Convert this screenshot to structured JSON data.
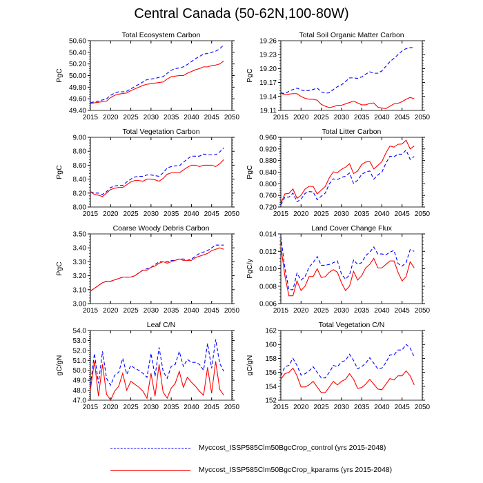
{
  "figure": {
    "title": "Central Canada (50-62N,100-80W)"
  },
  "legend": [
    {
      "label": "Myccost_ISSP585Clm50BgcCrop_control (yrs 2015-2048)",
      "color": "#0000ff",
      "style": "dashed"
    },
    {
      "label": "Myccost_ISSP585Clm50BgcCrop_kparams (yrs 2015-2048)",
      "color": "#ff0000",
      "style": "solid"
    }
  ],
  "chart_data": [
    {
      "type": "line",
      "title": "Total Ecosystem Carbon",
      "xlabel": "",
      "ylabel": "PgC",
      "xlim": [
        2015,
        2050
      ],
      "ylim": [
        49.4,
        50.6
      ],
      "xticks": [
        2015,
        2020,
        2025,
        2030,
        2035,
        2040,
        2045,
        2050
      ],
      "yticks": [
        "49.40",
        "49.60",
        "49.80",
        "50.00",
        "50.20",
        "50.40",
        "50.60"
      ],
      "x_start": 2015,
      "series": [
        {
          "name": "control",
          "color": "#0000ff",
          "style": "dashed",
          "values": [
            49.53,
            49.55,
            49.56,
            49.58,
            49.6,
            49.66,
            49.7,
            49.72,
            49.72,
            49.73,
            49.77,
            49.81,
            49.85,
            49.89,
            49.93,
            49.94,
            49.95,
            49.97,
            49.98,
            50.04,
            50.09,
            50.12,
            50.13,
            50.15,
            50.19,
            50.24,
            50.29,
            50.33,
            50.37,
            50.38,
            50.4,
            50.42,
            50.46,
            50.53
          ]
        },
        {
          "name": "kparams",
          "color": "#ff0000",
          "style": "solid",
          "values": [
            49.52,
            49.53,
            49.54,
            49.55,
            49.56,
            49.62,
            49.66,
            49.68,
            49.69,
            49.7,
            49.74,
            49.77,
            49.8,
            49.83,
            49.85,
            49.86,
            49.87,
            49.88,
            49.89,
            49.94,
            49.98,
            49.99,
            50.0,
            50.0,
            50.04,
            50.07,
            50.1,
            50.12,
            50.15,
            50.15,
            50.17,
            50.18,
            50.2,
            50.25
          ]
        }
      ]
    },
    {
      "type": "line",
      "title": "Total Soil Organic Matter Carbon",
      "xlabel": "",
      "ylabel": "PgC",
      "xlim": [
        2015,
        2050
      ],
      "ylim": [
        19.11,
        19.26
      ],
      "xticks": [
        2015,
        2020,
        2025,
        2030,
        2035,
        2040,
        2045,
        2050
      ],
      "yticks": [
        "19.11",
        "19.14",
        "19.17",
        "19.20",
        "19.23",
        "19.26"
      ],
      "x_start": 2015,
      "series": [
        {
          "name": "control",
          "color": "#0000ff",
          "style": "dashed",
          "values": [
            19.148,
            19.146,
            19.151,
            19.155,
            19.158,
            19.154,
            19.152,
            19.153,
            19.155,
            19.158,
            19.15,
            19.147,
            19.148,
            19.155,
            19.161,
            19.165,
            19.172,
            19.18,
            19.18,
            19.179,
            19.182,
            19.188,
            19.193,
            19.19,
            19.19,
            19.195,
            19.205,
            19.215,
            19.222,
            19.23,
            19.238,
            19.243,
            19.245,
            19.245
          ]
        },
        {
          "name": "kparams",
          "color": "#ff0000",
          "style": "solid",
          "values": [
            19.147,
            19.144,
            19.145,
            19.146,
            19.146,
            19.14,
            19.136,
            19.134,
            19.134,
            19.132,
            19.123,
            19.119,
            19.116,
            19.118,
            19.121,
            19.121,
            19.124,
            19.127,
            19.13,
            19.126,
            19.122,
            19.122,
            19.125,
            19.126,
            19.117,
            19.115,
            19.114,
            19.119,
            19.124,
            19.125,
            19.129,
            19.134,
            19.138,
            19.135
          ]
        }
      ]
    },
    {
      "type": "line",
      "title": "Total Vegetation Carbon",
      "xlabel": "",
      "ylabel": "PgC",
      "xlim": [
        2015,
        2050
      ],
      "ylim": [
        8.0,
        9.0
      ],
      "xticks": [
        2015,
        2020,
        2025,
        2030,
        2035,
        2040,
        2045,
        2050
      ],
      "yticks": [
        "8.00",
        "8.20",
        "8.40",
        "8.60",
        "8.80",
        "9.00"
      ],
      "x_start": 2015,
      "series": [
        {
          "name": "control",
          "color": "#0000ff",
          "style": "dashed",
          "values": [
            8.22,
            8.2,
            8.2,
            8.18,
            8.22,
            8.28,
            8.3,
            8.31,
            8.31,
            8.36,
            8.4,
            8.43,
            8.44,
            8.44,
            8.46,
            8.46,
            8.45,
            8.44,
            8.49,
            8.56,
            8.58,
            8.59,
            8.59,
            8.64,
            8.69,
            8.73,
            8.73,
            8.73,
            8.76,
            8.75,
            8.75,
            8.75,
            8.79,
            8.85
          ]
        },
        {
          "name": "kparams",
          "color": "#ff0000",
          "style": "solid",
          "values": [
            8.22,
            8.18,
            8.17,
            8.15,
            8.2,
            8.25,
            8.27,
            8.28,
            8.28,
            8.32,
            8.36,
            8.38,
            8.38,
            8.37,
            8.4,
            8.4,
            8.39,
            8.37,
            8.41,
            8.47,
            8.49,
            8.49,
            8.49,
            8.53,
            8.57,
            8.6,
            8.6,
            8.58,
            8.6,
            8.6,
            8.6,
            8.58,
            8.62,
            8.68
          ]
        }
      ]
    },
    {
      "type": "line",
      "title": "Total Litter Carbon",
      "xlabel": "",
      "ylabel": "PgC",
      "xlim": [
        2015,
        2050
      ],
      "ylim": [
        0.72,
        0.96
      ],
      "xticks": [
        2015,
        2020,
        2025,
        2030,
        2035,
        2040,
        2045,
        2050
      ],
      "yticks": [
        "0.720",
        "0.760",
        "0.800",
        "0.840",
        "0.880",
        "0.920",
        "0.960"
      ],
      "x_start": 2015,
      "series": [
        {
          "name": "control",
          "color": "#0000ff",
          "style": "dashed",
          "values": [
            0.727,
            0.754,
            0.754,
            0.768,
            0.738,
            0.747,
            0.767,
            0.773,
            0.772,
            0.745,
            0.757,
            0.768,
            0.8,
            0.817,
            0.814,
            0.822,
            0.826,
            0.837,
            0.801,
            0.812,
            0.832,
            0.841,
            0.844,
            0.816,
            0.83,
            0.84,
            0.871,
            0.895,
            0.893,
            0.902,
            0.902,
            0.916,
            0.884,
            0.894
          ]
        },
        {
          "name": "kparams",
          "color": "#ff0000",
          "style": "solid",
          "values": [
            0.732,
            0.765,
            0.767,
            0.782,
            0.75,
            0.76,
            0.782,
            0.791,
            0.791,
            0.765,
            0.778,
            0.791,
            0.821,
            0.841,
            0.838,
            0.85,
            0.857,
            0.869,
            0.835,
            0.844,
            0.866,
            0.875,
            0.877,
            0.851,
            0.863,
            0.876,
            0.906,
            0.93,
            0.926,
            0.936,
            0.937,
            0.95,
            0.92,
            0.93
          ]
        }
      ]
    },
    {
      "type": "line",
      "title": "Coarse Woody Debris Carbon",
      "xlabel": "",
      "ylabel": "PgC",
      "xlim": [
        2015,
        2050
      ],
      "ylim": [
        3.0,
        3.5
      ],
      "xticks": [
        2015,
        2020,
        2025,
        2030,
        2035,
        2040,
        2045,
        2050
      ],
      "yticks": [
        "3.00",
        "3.10",
        "3.20",
        "3.30",
        "3.40",
        "3.50"
      ],
      "x_start": 2015,
      "series": [
        {
          "name": "control",
          "color": "#0000ff",
          "style": "dashed",
          "values": [
            3.09,
            3.11,
            3.13,
            3.15,
            3.16,
            3.16,
            3.17,
            3.18,
            3.19,
            3.19,
            3.19,
            3.2,
            3.22,
            3.24,
            3.25,
            3.26,
            3.28,
            3.3,
            3.3,
            3.3,
            3.31,
            3.31,
            3.32,
            3.32,
            3.31,
            3.32,
            3.34,
            3.36,
            3.37,
            3.38,
            3.4,
            3.42,
            3.42,
            3.42
          ]
        },
        {
          "name": "kparams",
          "color": "#ff0000",
          "style": "solid",
          "values": [
            3.09,
            3.11,
            3.13,
            3.15,
            3.16,
            3.16,
            3.17,
            3.18,
            3.19,
            3.19,
            3.19,
            3.2,
            3.22,
            3.24,
            3.24,
            3.26,
            3.27,
            3.29,
            3.3,
            3.29,
            3.3,
            3.31,
            3.32,
            3.31,
            3.31,
            3.31,
            3.33,
            3.34,
            3.35,
            3.36,
            3.38,
            3.39,
            3.4,
            3.39
          ]
        }
      ]
    },
    {
      "type": "line",
      "title": "Land Cover Change Flux",
      "xlabel": "",
      "ylabel": "PgC/y",
      "xlim": [
        2015,
        2050
      ],
      "ylim": [
        0.006,
        0.014
      ],
      "xticks": [
        2015,
        2020,
        2025,
        2030,
        2035,
        2040,
        2045,
        2050
      ],
      "yticks": [
        "0.006",
        "0.008",
        "0.010",
        "0.012",
        "0.014"
      ],
      "x_start": 2015,
      "series": [
        {
          "name": "control",
          "color": "#0000ff",
          "style": "dashed",
          "values": [
            0.0137,
            0.0101,
            0.0076,
            0.0076,
            0.0095,
            0.0087,
            0.0091,
            0.0102,
            0.0107,
            0.0114,
            0.0104,
            0.0104,
            0.0105,
            0.0107,
            0.0109,
            0.0094,
            0.0088,
            0.0093,
            0.011,
            0.0105,
            0.0107,
            0.0115,
            0.0119,
            0.0125,
            0.0117,
            0.0117,
            0.0116,
            0.0119,
            0.0121,
            0.0106,
            0.0103,
            0.0107,
            0.0122,
            0.012
          ]
        },
        {
          "name": "kparams",
          "color": "#ff0000",
          "style": "solid",
          "values": [
            0.0126,
            0.0092,
            0.0069,
            0.0069,
            0.0086,
            0.0075,
            0.008,
            0.0091,
            0.0091,
            0.01,
            0.009,
            0.0091,
            0.0096,
            0.0099,
            0.0096,
            0.0084,
            0.0075,
            0.008,
            0.0097,
            0.0087,
            0.0092,
            0.0101,
            0.0105,
            0.0112,
            0.0101,
            0.0101,
            0.0105,
            0.0109,
            0.0109,
            0.0096,
            0.0086,
            0.0091,
            0.0108,
            0.0101
          ]
        }
      ]
    },
    {
      "type": "line",
      "title": "Leaf C/N",
      "xlabel": "",
      "ylabel": "gC/gN",
      "xlim": [
        2015,
        2050
      ],
      "ylim": [
        47.0,
        54.0
      ],
      "xticks": [
        2015,
        2020,
        2025,
        2030,
        2035,
        2040,
        2045,
        2050
      ],
      "yticks": [
        "47.0",
        "48.0",
        "49.0",
        "50.0",
        "51.0",
        "52.0",
        "53.0",
        "54.0"
      ],
      "x_start": 2015,
      "series": [
        {
          "name": "control",
          "color": "#0000ff",
          "style": "dashed",
          "values": [
            48.5,
            51.7,
            48.7,
            51.9,
            49.2,
            48.5,
            49.5,
            49.8,
            51.2,
            49.6,
            50.5,
            50.2,
            50.0,
            49.7,
            49.3,
            51.7,
            49.4,
            52.3,
            49.9,
            49.2,
            50.4,
            50.6,
            51.9,
            50.4,
            51.1,
            50.8,
            50.8,
            50.6,
            50.0,
            52.7,
            50.2,
            53.1,
            50.7,
            49.9
          ]
        },
        {
          "name": "kparams",
          "color": "#ff0000",
          "style": "solid",
          "values": [
            48.0,
            50.9,
            47.4,
            50.6,
            47.6,
            47.0,
            47.9,
            48.4,
            49.7,
            48.0,
            48.9,
            48.6,
            48.3,
            47.9,
            47.2,
            49.7,
            47.4,
            50.6,
            47.8,
            47.2,
            48.2,
            48.7,
            49.9,
            48.3,
            49.3,
            48.8,
            48.4,
            47.9,
            47.5,
            50.3,
            47.7,
            50.9,
            48.1,
            47.5
          ]
        }
      ]
    },
    {
      "type": "line",
      "title": "Total Vegetation C/N",
      "xlabel": "",
      "ylabel": "gC/gN",
      "xlim": [
        2015,
        2050
      ],
      "ylim": [
        152,
        162
      ],
      "xticks": [
        2015,
        2020,
        2025,
        2030,
        2035,
        2040,
        2045,
        2050
      ],
      "yticks": [
        "152",
        "154",
        "156",
        "158",
        "160",
        "162"
      ],
      "x_start": 2015,
      "series": [
        {
          "name": "control",
          "color": "#0000ff",
          "style": "dashed",
          "values": [
            155.5,
            156.8,
            157.0,
            158.0,
            157.0,
            155.6,
            155.8,
            156.2,
            156.8,
            156.0,
            155.2,
            155.2,
            156.0,
            157.0,
            156.8,
            157.5,
            157.7,
            158.6,
            157.7,
            156.5,
            156.8,
            157.3,
            158.1,
            157.3,
            156.5,
            156.6,
            157.4,
            158.5,
            158.5,
            159.2,
            159.2,
            160.0,
            159.5,
            158.2
          ]
        },
        {
          "name": "kparams",
          "color": "#ff0000",
          "style": "solid",
          "values": [
            155.0,
            155.8,
            156.0,
            156.6,
            155.5,
            153.9,
            153.9,
            154.2,
            154.7,
            153.9,
            153.1,
            153.1,
            153.9,
            154.7,
            154.2,
            154.7,
            155.0,
            155.8,
            155.0,
            153.7,
            153.8,
            154.3,
            155.0,
            154.3,
            153.6,
            153.5,
            154.3,
            155.1,
            154.9,
            155.5,
            155.5,
            156.2,
            155.5,
            154.2
          ]
        }
      ]
    }
  ]
}
